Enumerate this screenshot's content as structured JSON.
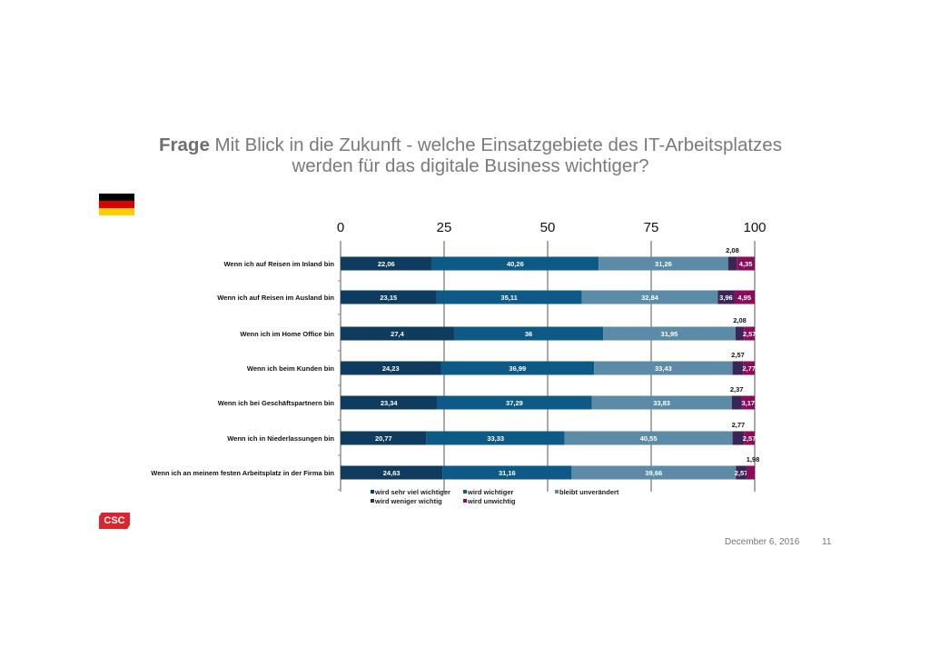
{
  "title": {
    "bold": "Frage",
    "line1": " Mit Blick in die Zukunft - welche Einsatzgebiete des IT-Arbeitsplatzes",
    "line2": "werden für das digitale Business wichtiger?"
  },
  "flag": {
    "name": "germany-flag-icon",
    "colors": [
      "#000000",
      "#dd0000",
      "#ffce00"
    ]
  },
  "logo": {
    "text": "CSC",
    "color": "#d9262e"
  },
  "footer": {
    "date": "December 6, 2016",
    "page": "11"
  },
  "chart_data": {
    "type": "bar",
    "orientation": "horizontal",
    "stacked": true,
    "xlim": [
      0,
      100
    ],
    "xticks": [
      "0",
      "25",
      "50",
      "75",
      "100"
    ],
    "grid": true,
    "legend_position": "bottom",
    "categories": [
      "Wenn ich auf Reisen im Inland bin",
      "Wenn ich auf Reisen im Ausland bin",
      "Wenn ich im Home Office bin",
      "Wenn ich beim Kunden bin",
      "Wenn ich bei Geschäftspartnern bin",
      "Wenn ich in Niederlassungen bin",
      "Wenn ich an meinem festen Arbeitsplatz in der Firma bin"
    ],
    "series": [
      {
        "name": "wird sehr viel wichtiger",
        "color": "#0e3b5e",
        "values": [
          22.06,
          23.15,
          27.4,
          24.23,
          23.34,
          20.77,
          24.63
        ],
        "labels": [
          "22,06",
          "23,15",
          "27,4",
          "24,23",
          "23,34",
          "20,77",
          "24,63"
        ]
      },
      {
        "name": "wird wichtiger",
        "color": "#0d5a87",
        "values": [
          40.26,
          35.11,
          36,
          36.99,
          37.29,
          33.33,
          31.16
        ],
        "labels": [
          "40,26",
          "35,11",
          "36",
          "36,99",
          "37,29",
          "33,33",
          "31,16"
        ]
      },
      {
        "name": "bleibt unverändert",
        "color": "#5b8ba7",
        "values": [
          31.26,
          32.84,
          31.95,
          33.43,
          33.83,
          40.55,
          39.66
        ],
        "labels": [
          "31,26",
          "32,84",
          "31,95",
          "33,43",
          "33,83",
          "40,55",
          "39,66"
        ]
      },
      {
        "name": "wird weniger wichtig",
        "color": "#3a2557",
        "values": [
          2.08,
          3.96,
          2.08,
          2.57,
          2.37,
          2.77,
          2.57
        ],
        "labels": [
          "2,08",
          "3,96",
          "2,08",
          "2,57",
          "2,37",
          "2,77",
          "2,57"
        ]
      },
      {
        "name": "wird unwichtig",
        "color": "#8b0c5c",
        "values": [
          4.35,
          4.95,
          2.57,
          2.77,
          3.17,
          2.57,
          1.98
        ],
        "labels": [
          "4,35",
          "4,95",
          "2,57",
          "2,77",
          "3,17",
          "2,57",
          "1,98"
        ]
      }
    ]
  }
}
